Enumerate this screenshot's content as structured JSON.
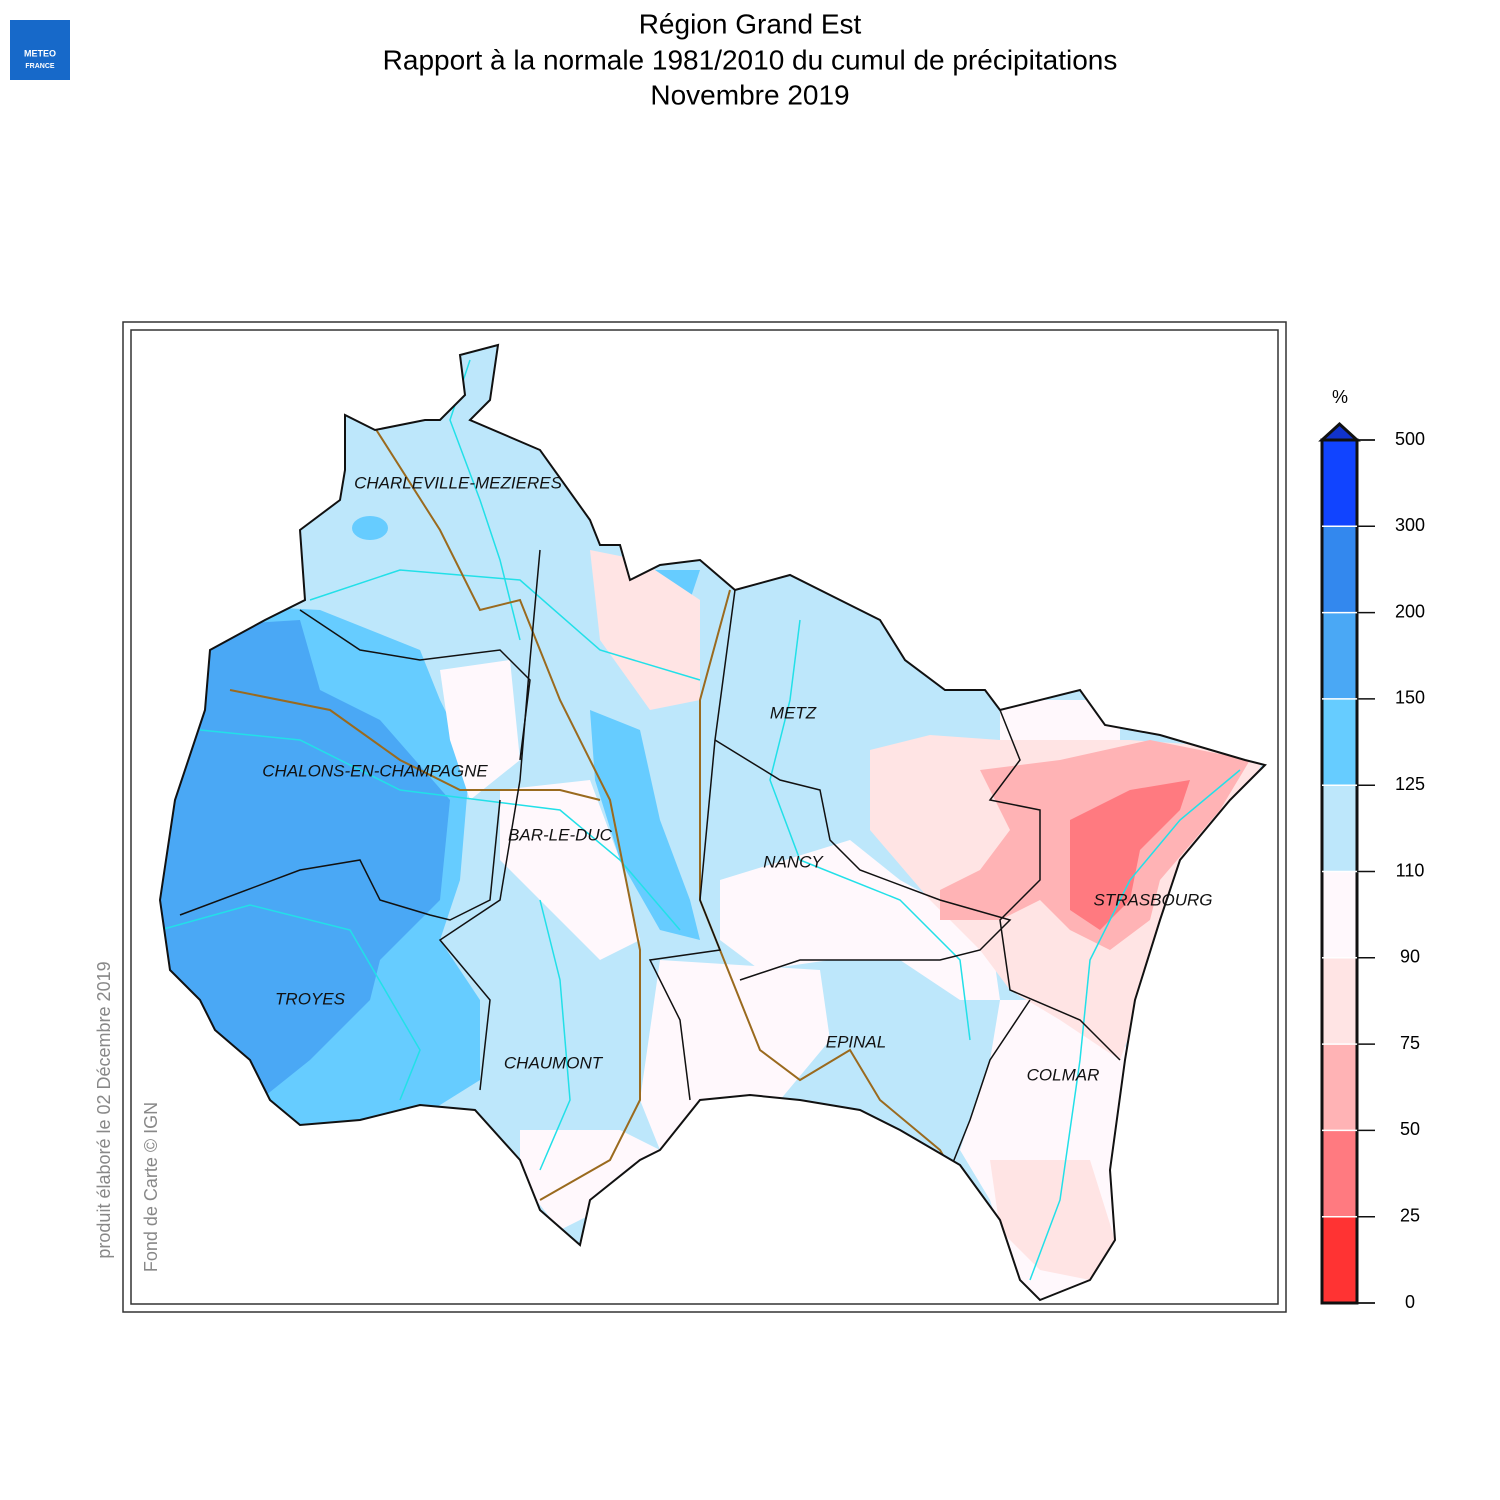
{
  "logo": [
    "METEO",
    "FRANCE"
  ],
  "title": [
    "Région Grand Est",
    "Rapport à la normale 1981/2010 du cumul de précipitations",
    "Novembre 2019"
  ],
  "side_notes": [
    "produit élaboré le 02 Décembre 2019",
    "Fond de Carte © IGN"
  ],
  "cities": [
    "CHARLEVILLE-MEZIERES",
    "CHALONS-EN-CHAMPAGNE",
    "BAR-LE-DUC",
    "METZ",
    "NANCY",
    "STRASBOURG",
    "TROYES",
    "CHAUMONT",
    "EPINAL",
    "COLMAR"
  ],
  "legend": {
    "unit": "%",
    "ticks": [
      0,
      25,
      50,
      75,
      90,
      110,
      125,
      150,
      200,
      300,
      500
    ],
    "colors": [
      "#ff3333",
      "#ff7a80",
      "#ffb3b5",
      "#ffe4e4",
      "#fff8fc",
      "#bde7fb",
      "#66ccff",
      "#4aa8f5",
      "#3388ee",
      "#1144ff"
    ],
    "overflow_color": "#1133cc"
  }
}
